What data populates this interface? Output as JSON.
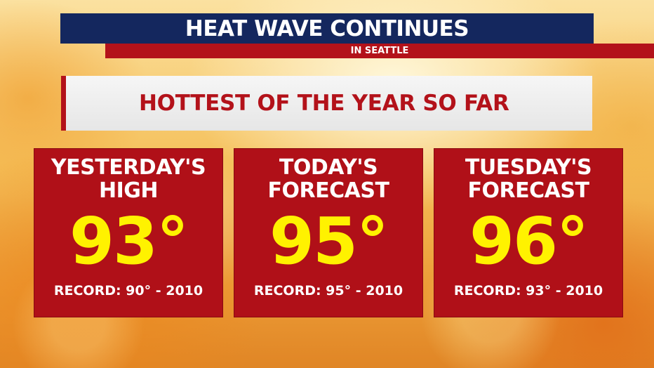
{
  "header": {
    "title": "HEAT WAVE CONTINUES",
    "subtitle": "IN SEATTLE"
  },
  "banner": {
    "text": "HOTTEST OF THE YEAR SO FAR"
  },
  "cards": [
    {
      "label_line1": "YESTERDAY'S",
      "label_line2": "HIGH",
      "temperature": "93°",
      "record": "RECORD: 90° - 2010"
    },
    {
      "label_line1": "TODAY'S",
      "label_line2": "FORECAST",
      "temperature": "95°",
      "record": "RECORD: 95° - 2010"
    },
    {
      "label_line1": "TUESDAY'S",
      "label_line2": "FORECAST",
      "temperature": "96°",
      "record": "RECORD: 93° - 2010"
    }
  ],
  "colors": {
    "navy": "#14275e",
    "red": "#b3121a",
    "card_red": "#b01018",
    "temperature_yellow": "#fff200",
    "banner_gray": "#eeeeee"
  }
}
